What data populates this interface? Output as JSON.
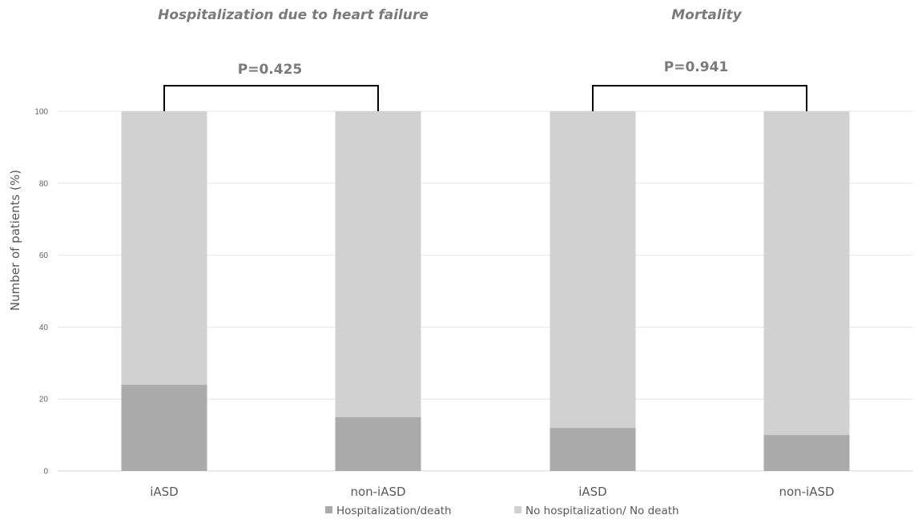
{
  "chart_data": {
    "type": "bar",
    "stacked": true,
    "ylabel": "Number of patients (%)",
    "ylim": [
      0,
      100
    ],
    "yticks": [
      0,
      20,
      40,
      60,
      80,
      100
    ],
    "grid": true,
    "legend_position": "bottom",
    "panels": [
      {
        "title": "Hospitalization due to heart failure",
        "p_value": "P=0.425"
      },
      {
        "title": "Mortality",
        "p_value": "P=0.941"
      }
    ],
    "categories": [
      "iASD",
      "non-iASD",
      "iASD",
      "non-iASD"
    ],
    "series": [
      {
        "name": "Hospitalization/death",
        "color": "#a9aaa9",
        "values": [
          24,
          15,
          12,
          10
        ]
      },
      {
        "name": "No hospitalization/ No death",
        "color": "#d0d1d0",
        "values": [
          76,
          85,
          88,
          90
        ]
      }
    ]
  }
}
